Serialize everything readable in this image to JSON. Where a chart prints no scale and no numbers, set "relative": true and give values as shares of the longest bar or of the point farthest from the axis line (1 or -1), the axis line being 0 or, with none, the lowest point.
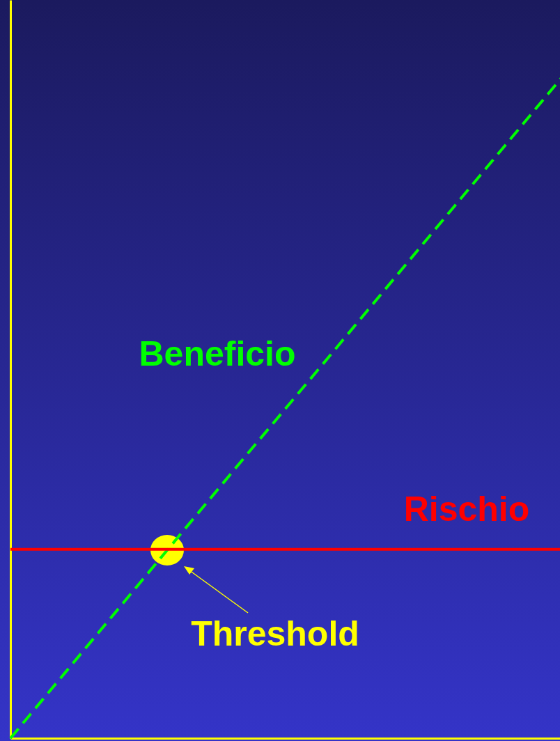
{
  "chart_data": {
    "type": "line",
    "relative": true,
    "categories": [
      null,
      null,
      null,
      null,
      null,
      null,
      null,
      null
    ],
    "series": [
      {
        "name": "Beneficio",
        "color": "#00ff00",
        "line_style": "dashed",
        "values": [
          0,
          0.143,
          0.286,
          0.429,
          0.571,
          0.714,
          0.857,
          1
        ]
      },
      {
        "name": "Rischio",
        "color": "#ff0000",
        "line_style": "solid",
        "values": [
          0.286,
          0.286,
          0.286,
          0.286,
          0.286,
          0.286,
          0.286,
          0.286
        ]
      }
    ],
    "annotations": [
      "Threshold"
    ]
  }
}
